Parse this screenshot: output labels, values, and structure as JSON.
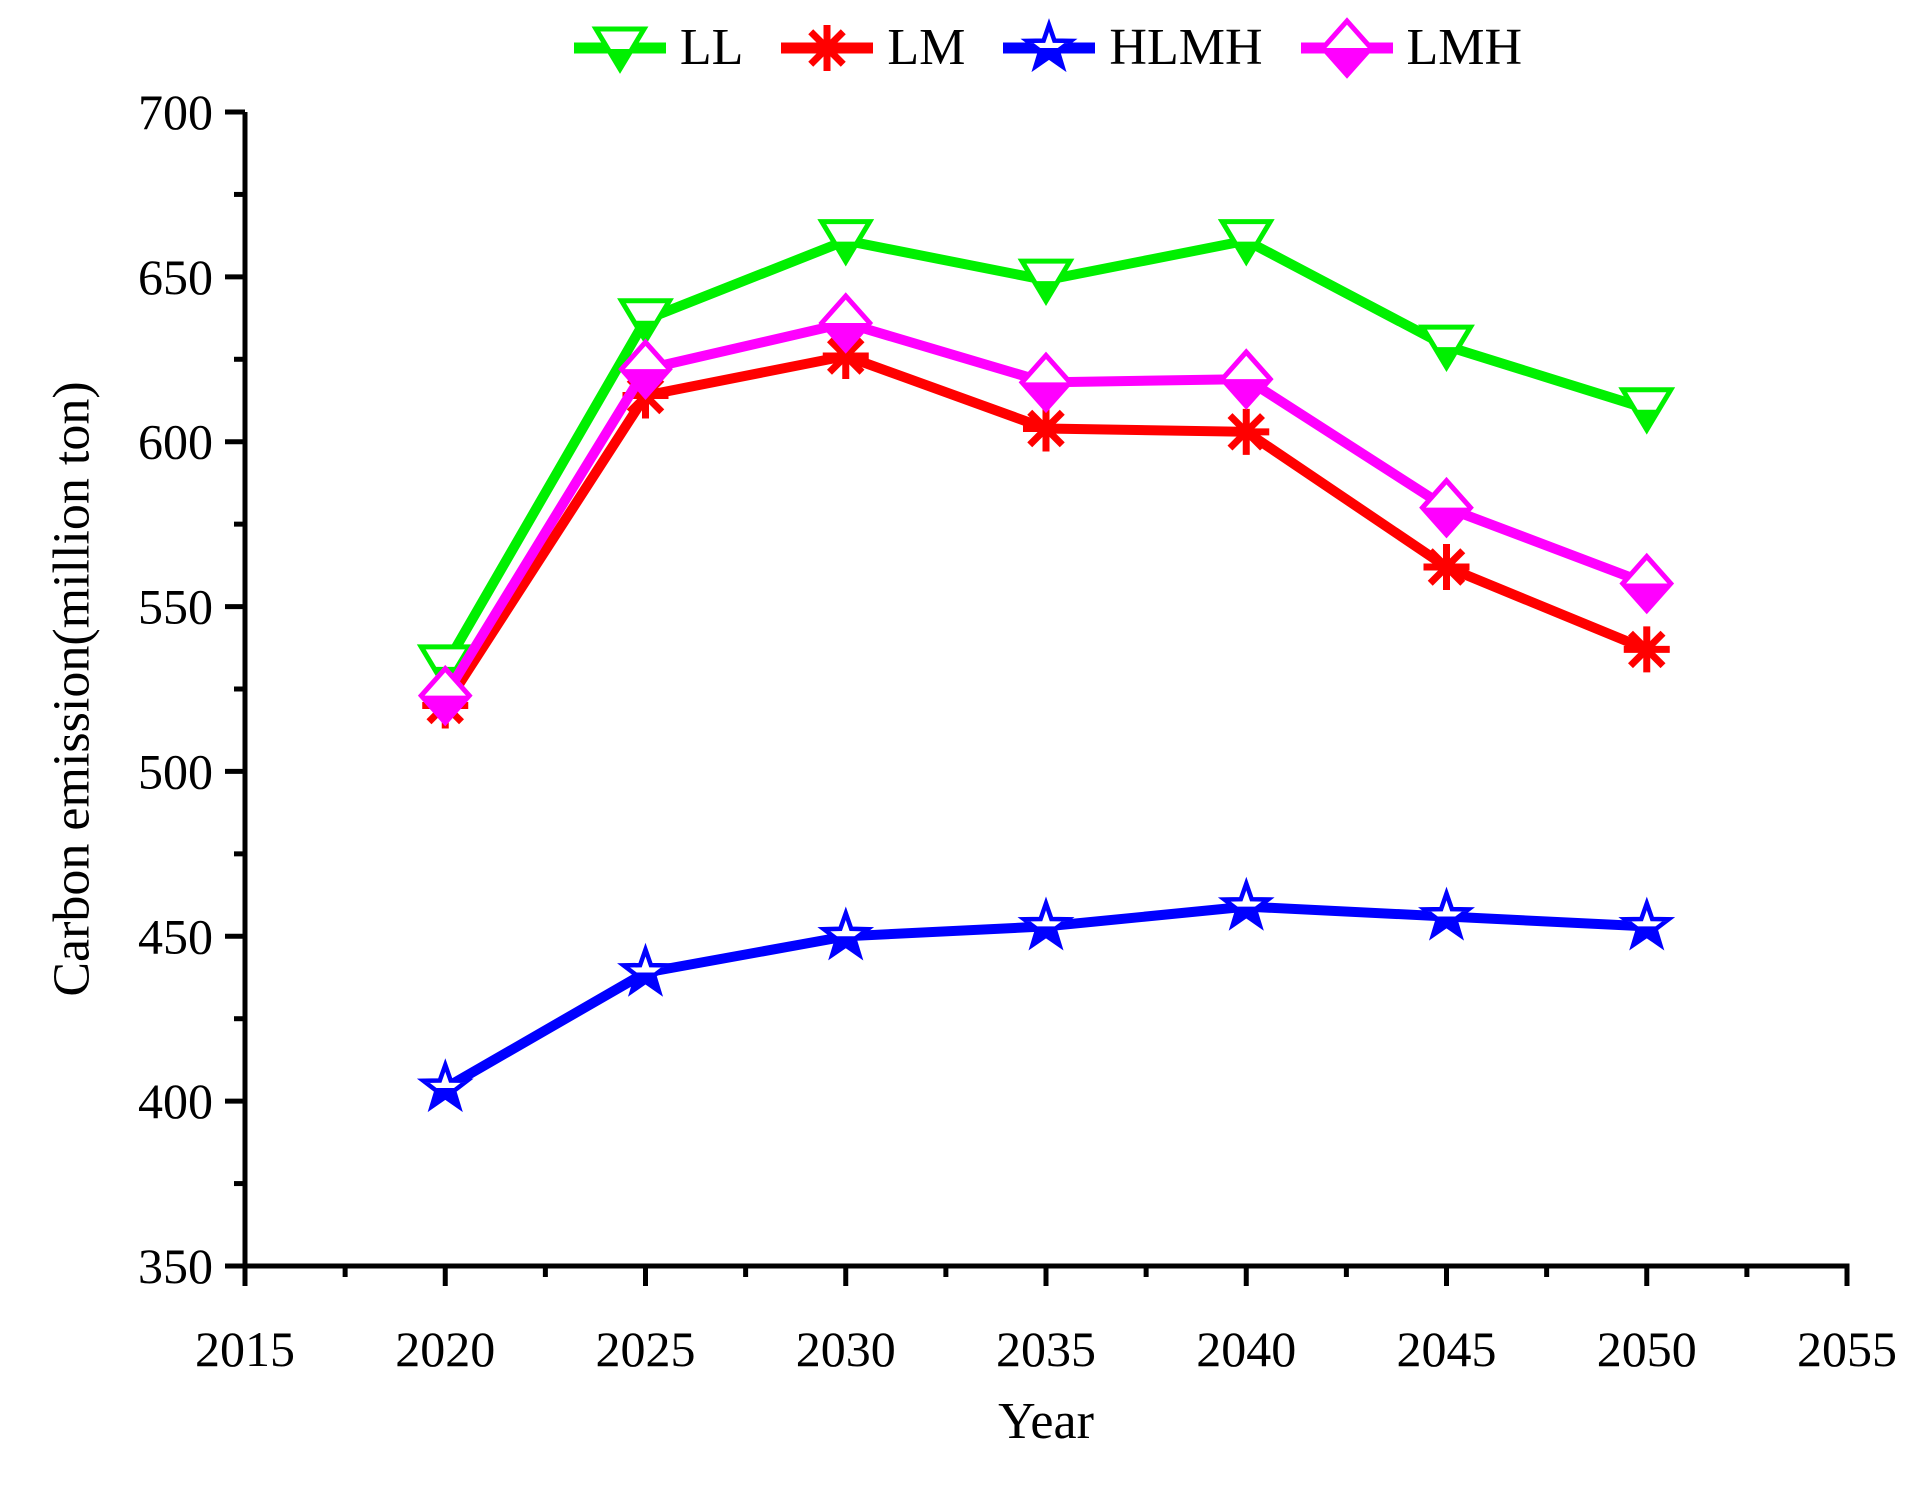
{
  "chart_data": {
    "type": "line",
    "xlabel": "Year",
    "ylabel": "Carbon emission(million ton)",
    "x": [
      2020,
      2025,
      2030,
      2035,
      2040,
      2045,
      2050
    ],
    "series": [
      {
        "name": "LL",
        "color": "#00f000",
        "marker": "triangle-down-half-filled",
        "values": [
          532,
          637,
          661,
          649,
          661,
          629,
          610
        ]
      },
      {
        "name": "LM",
        "color": "#ff0000",
        "marker": "asterisk",
        "values": [
          520,
          614,
          626,
          604,
          603,
          562,
          537
        ]
      },
      {
        "name": "HLMH",
        "color": "#0000ff",
        "marker": "star-half-filled",
        "values": [
          404,
          439,
          450,
          453,
          459,
          456,
          453
        ]
      },
      {
        "name": "LMH",
        "color": "#ff00ff",
        "marker": "diamond-half-filled",
        "values": [
          523,
          622,
          636,
          618,
          619,
          580,
          557
        ]
      }
    ],
    "axes": {
      "xlim": [
        2015,
        2055
      ],
      "ylim": [
        350,
        700
      ],
      "x_major_ticks": [
        2015,
        2020,
        2025,
        2030,
        2035,
        2040,
        2045,
        2050,
        2055
      ],
      "x_minor_step": 2.5,
      "y_major_ticks": [
        350,
        400,
        450,
        500,
        550,
        600,
        650,
        700
      ],
      "y_minor_step": 25,
      "tick_direction": "out",
      "grid": false,
      "legend_position": "top-center",
      "axis_color": "#000000",
      "text_color": "#000000"
    }
  }
}
